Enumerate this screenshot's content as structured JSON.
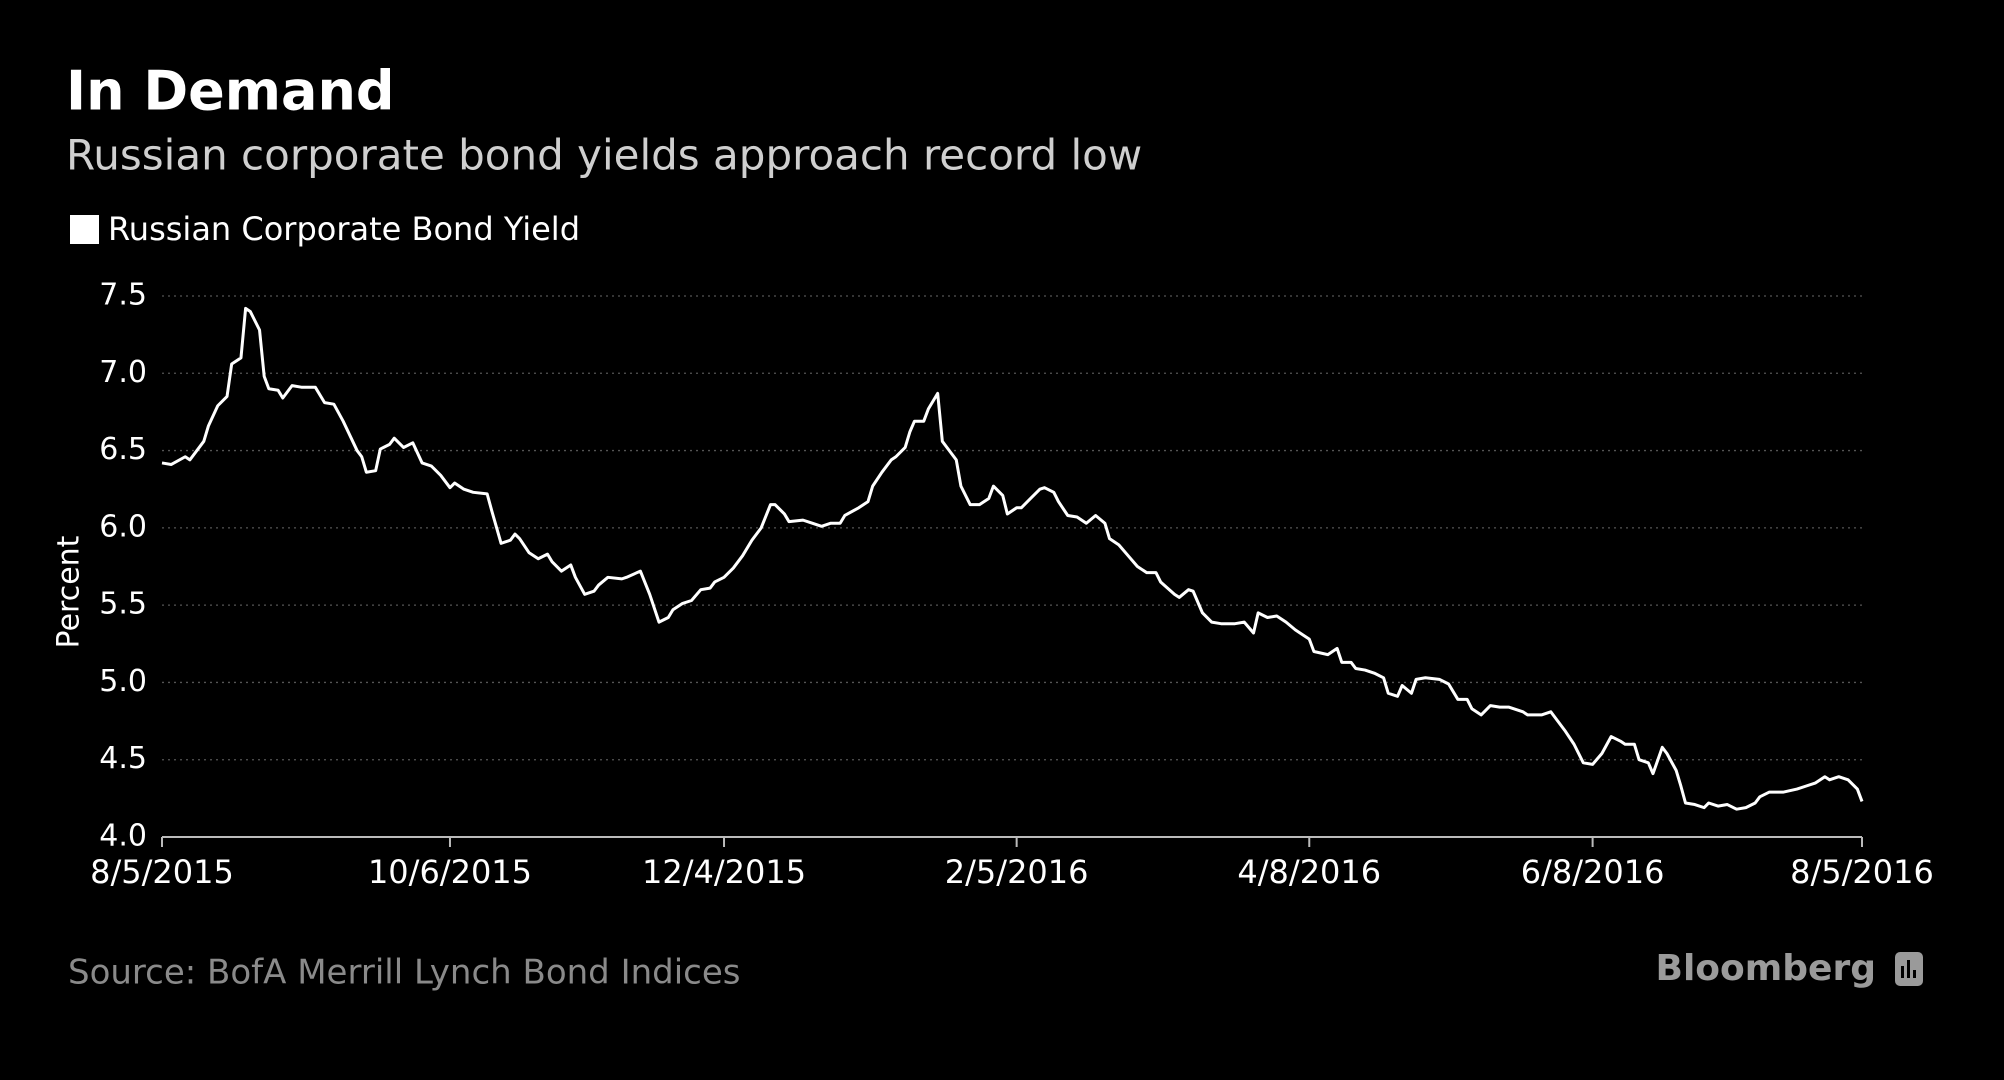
{
  "chart_data": {
    "type": "line",
    "title": "In Demand",
    "subtitle": "Russian corporate bond yields approach record low",
    "y_label": "Percent",
    "source": "Source: BofA Merrill Lynch Bond Indices",
    "logo": "Bloomberg",
    "grid": true,
    "legend": "top-left",
    "xlim": [
      "2015-08-05",
      "2016-08-05"
    ],
    "xticks": [
      {
        "value": "2015-08-05",
        "label": "8/5/2015"
      },
      {
        "value": "2015-10-06",
        "label": "10/6/2015"
      },
      {
        "value": "2015-12-04",
        "label": "12/4/2015"
      },
      {
        "value": "2016-02-05",
        "label": "2/5/2016"
      },
      {
        "value": "2016-04-08",
        "label": "4/8/2016"
      },
      {
        "value": "2016-06-08",
        "label": "6/8/2016"
      },
      {
        "value": "2016-08-05",
        "label": "8/5/2016"
      }
    ],
    "ylim": [
      4.0,
      7.5
    ],
    "yticks": [
      {
        "value": 4.0,
        "label": "4.0"
      },
      {
        "value": 4.5,
        "label": "4.5"
      },
      {
        "value": 5.0,
        "label": "5.0"
      },
      {
        "value": 5.5,
        "label": "5.5"
      },
      {
        "value": 6.0,
        "label": "6.0"
      },
      {
        "value": 6.5,
        "label": "6.5"
      },
      {
        "value": 7.0,
        "label": "7.0"
      },
      {
        "value": 7.5,
        "label": "7.5"
      }
    ],
    "x": [
      "2015-08-05",
      "2015-08-07",
      "2015-08-10",
      "2015-08-11",
      "2015-08-14",
      "2015-08-15",
      "2015-08-17",
      "2015-08-19",
      "2015-08-20",
      "2015-08-22",
      "2015-08-23",
      "2015-08-24",
      "2015-08-26",
      "2015-08-27",
      "2015-08-28",
      "2015-08-30",
      "2015-08-31",
      "2015-09-02",
      "2015-09-04",
      "2015-09-07",
      "2015-09-09",
      "2015-09-11",
      "2015-09-13",
      "2015-09-16",
      "2015-09-17",
      "2015-09-18",
      "2015-09-20",
      "2015-09-21",
      "2015-09-23",
      "2015-09-24",
      "2015-09-26",
      "2015-09-28",
      "2015-09-30",
      "2015-10-02",
      "2015-10-04",
      "2015-10-06",
      "2015-10-07",
      "2015-10-09",
      "2015-10-11",
      "2015-10-14",
      "2015-10-15",
      "2015-10-17",
      "2015-10-19",
      "2015-10-20",
      "2015-10-21",
      "2015-10-23",
      "2015-10-25",
      "2015-10-27",
      "2015-10-28",
      "2015-10-30",
      "2015-11-01",
      "2015-11-02",
      "2015-11-04",
      "2015-11-06",
      "2015-11-07",
      "2015-11-09",
      "2015-11-12",
      "2015-11-13",
      "2015-11-16",
      "2015-11-18",
      "2015-11-20",
      "2015-11-22",
      "2015-11-23",
      "2015-11-25",
      "2015-11-27",
      "2015-11-29",
      "2015-12-01",
      "2015-12-02",
      "2015-12-04",
      "2015-12-06",
      "2015-12-08",
      "2015-12-10",
      "2015-12-12",
      "2015-12-14",
      "2015-12-15",
      "2015-12-17",
      "2015-12-18",
      "2015-12-21",
      "2015-12-23",
      "2015-12-25",
      "2015-12-27",
      "2015-12-29",
      "2015-12-30",
      "2016-01-02",
      "2016-01-04",
      "2016-01-05",
      "2016-01-07",
      "2016-01-09",
      "2016-01-10",
      "2016-01-12",
      "2016-01-13",
      "2016-01-14",
      "2016-01-16",
      "2016-01-17",
      "2016-01-19",
      "2016-01-20",
      "2016-01-21",
      "2016-01-23",
      "2016-01-24",
      "2016-01-26",
      "2016-01-28",
      "2016-01-30",
      "2016-01-31",
      "2016-02-02",
      "2016-02-03",
      "2016-02-05",
      "2016-02-06",
      "2016-02-08",
      "2016-02-10",
      "2016-02-11",
      "2016-02-13",
      "2016-02-14",
      "2016-02-16",
      "2016-02-18",
      "2016-02-20",
      "2016-02-22",
      "2016-02-24",
      "2016-02-25",
      "2016-02-27",
      "2016-02-29",
      "2016-03-02",
      "2016-03-04",
      "2016-03-06",
      "2016-03-07",
      "2016-03-10",
      "2016-03-11",
      "2016-03-13",
      "2016-03-14",
      "2016-03-16",
      "2016-03-18",
      "2016-03-20",
      "2016-03-23",
      "2016-03-25",
      "2016-03-27",
      "2016-03-28",
      "2016-03-30",
      "2016-04-01",
      "2016-04-03",
      "2016-04-05",
      "2016-04-08",
      "2016-04-09",
      "2016-04-12",
      "2016-04-14",
      "2016-04-15",
      "2016-04-17",
      "2016-04-18",
      "2016-04-20",
      "2016-04-22",
      "2016-04-24",
      "2016-04-25",
      "2016-04-27",
      "2016-04-28",
      "2016-04-30",
      "2016-05-01",
      "2016-05-03",
      "2016-05-06",
      "2016-05-08",
      "2016-05-10",
      "2016-05-12",
      "2016-05-13",
      "2016-05-15",
      "2016-05-17",
      "2016-05-19",
      "2016-05-21",
      "2016-05-24",
      "2016-05-25",
      "2016-05-28",
      "2016-05-30",
      "2016-05-31",
      "2016-06-02",
      "2016-06-04",
      "2016-06-06",
      "2016-06-08",
      "2016-06-10",
      "2016-06-12",
      "2016-06-14",
      "2016-06-15",
      "2016-06-17",
      "2016-06-18",
      "2016-06-20",
      "2016-06-21",
      "2016-06-23",
      "2016-06-24",
      "2016-06-26",
      "2016-06-27",
      "2016-06-28",
      "2016-06-30",
      "2016-07-02",
      "2016-07-03",
      "2016-07-05",
      "2016-07-07",
      "2016-07-09",
      "2016-07-11",
      "2016-07-13",
      "2016-07-14",
      "2016-07-16",
      "2016-07-19",
      "2016-07-22",
      "2016-07-24",
      "2016-07-26",
      "2016-07-28",
      "2016-07-29",
      "2016-07-31",
      "2016-08-02",
      "2016-08-04",
      "2016-08-05"
    ],
    "series": [
      {
        "name": "Russian Corporate Bond Yield",
        "color": "#ffffff",
        "values": [
          6.42,
          6.41,
          6.46,
          6.44,
          6.56,
          6.66,
          6.79,
          6.85,
          7.06,
          7.1,
          7.42,
          7.4,
          7.28,
          6.98,
          6.9,
          6.89,
          6.84,
          6.92,
          6.91,
          6.91,
          6.81,
          6.8,
          6.69,
          6.5,
          6.46,
          6.36,
          6.37,
          6.51,
          6.54,
          6.58,
          6.52,
          6.55,
          6.42,
          6.4,
          6.34,
          6.26,
          6.29,
          6.25,
          6.23,
          6.22,
          6.11,
          5.9,
          5.92,
          5.96,
          5.93,
          5.84,
          5.8,
          5.83,
          5.78,
          5.72,
          5.76,
          5.68,
          5.57,
          5.59,
          5.63,
          5.68,
          5.67,
          5.68,
          5.72,
          5.57,
          5.39,
          5.42,
          5.47,
          5.51,
          5.53,
          5.6,
          5.61,
          5.65,
          5.68,
          5.74,
          5.82,
          5.92,
          6.0,
          6.15,
          6.15,
          6.09,
          6.04,
          6.05,
          6.03,
          6.01,
          6.03,
          6.03,
          6.08,
          6.13,
          6.17,
          6.27,
          6.36,
          6.44,
          6.46,
          6.52,
          6.62,
          6.69,
          6.69,
          6.77,
          6.87,
          6.56,
          6.52,
          6.44,
          6.27,
          6.15,
          6.15,
          6.19,
          6.27,
          6.21,
          6.09,
          6.13,
          6.13,
          6.19,
          6.25,
          6.26,
          6.23,
          6.17,
          6.08,
          6.07,
          6.03,
          6.08,
          6.03,
          5.93,
          5.89,
          5.82,
          5.75,
          5.71,
          5.71,
          5.65,
          5.57,
          5.55,
          5.6,
          5.59,
          5.45,
          5.39,
          5.38,
          5.38,
          5.39,
          5.32,
          5.45,
          5.42,
          5.43,
          5.39,
          5.34,
          5.28,
          5.2,
          5.18,
          5.22,
          5.13,
          5.13,
          5.09,
          5.08,
          5.06,
          5.03,
          4.93,
          4.91,
          4.98,
          4.93,
          5.02,
          5.03,
          5.02,
          4.99,
          4.89,
          4.89,
          4.83,
          4.79,
          4.85,
          4.84,
          4.84,
          4.81,
          4.79,
          4.79,
          4.81,
          4.77,
          4.69,
          4.6,
          4.48,
          4.47,
          4.54,
          4.65,
          4.62,
          4.6,
          4.6,
          4.5,
          4.48,
          4.41,
          4.58,
          4.54,
          4.43,
          4.33,
          4.22,
          4.21,
          4.19,
          4.22,
          4.2,
          4.21,
          4.18,
          4.19,
          4.22,
          4.26,
          4.29,
          4.29,
          4.31,
          4.33,
          4.35,
          4.39,
          4.37,
          4.39,
          4.37,
          4.31,
          4.23
        ]
      }
    ]
  }
}
